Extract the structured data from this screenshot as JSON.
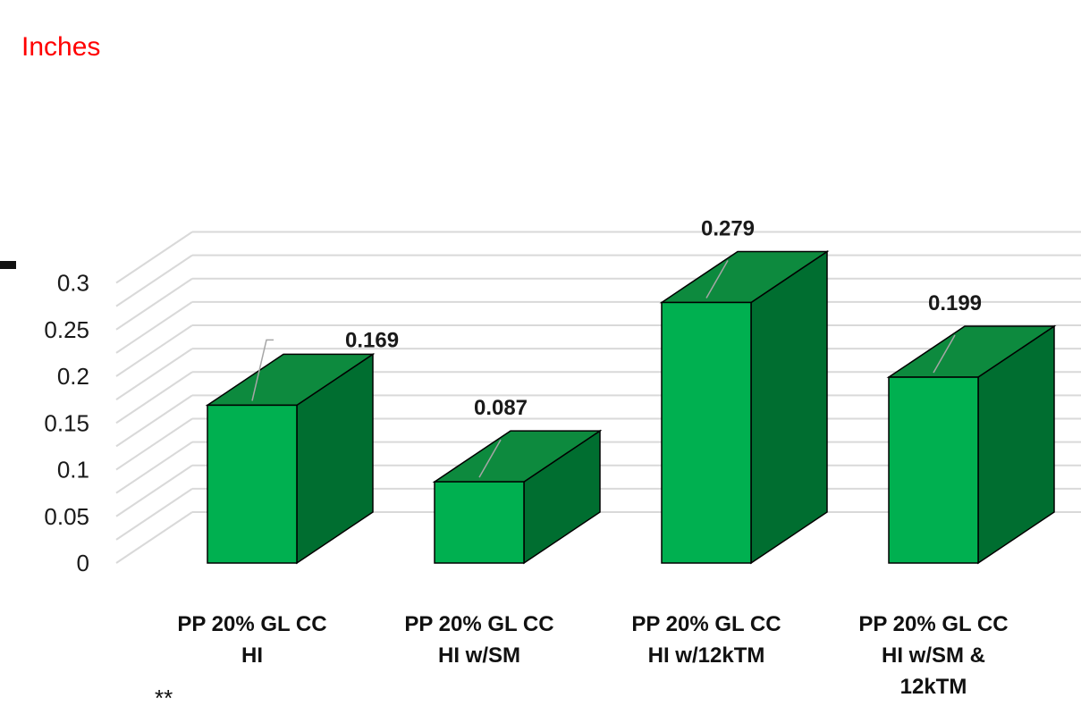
{
  "chart_data": {
    "type": "bar",
    "style": "3d-column",
    "unit_label": "Inches",
    "categories": [
      [
        "PP 20% GL CC",
        "HI"
      ],
      [
        "PP 20% GL CC",
        "HI w/SM"
      ],
      [
        "PP 20% GL CC",
        "HI w/12kTM"
      ],
      [
        "PP 20% GL CC",
        "HI w/SM &",
        "12kTM"
      ]
    ],
    "values": [
      0.169,
      0.087,
      0.279,
      0.199
    ],
    "data_labels": [
      "0.169",
      "0.087",
      "0.279",
      "0.199"
    ],
    "y_ticks": [
      "0",
      "0.05",
      "0.1",
      "0.15",
      "0.2",
      "0.25",
      "0.3"
    ],
    "ylim": [
      0,
      0.3
    ],
    "grid": true,
    "footnote": "**",
    "colors": {
      "bar_front": "#00b050",
      "bar_top": "#0d8a3e",
      "bar_side": "#006e30",
      "grid": "#d9d9d9",
      "unit_label": "#ff0000"
    }
  }
}
